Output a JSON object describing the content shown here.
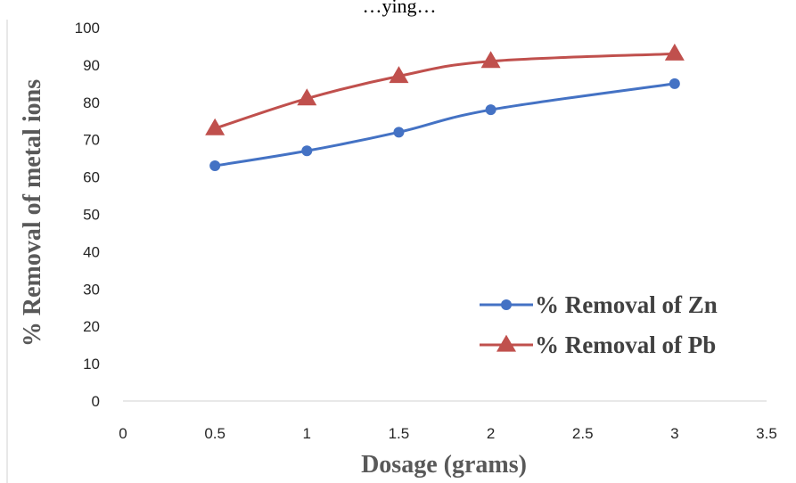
{
  "chart_data": {
    "type": "line",
    "title": "…ying…",
    "xlabel": "Dosage (grams)",
    "ylabel": "% Removal of metal ions",
    "xlim": [
      0,
      3.5
    ],
    "ylim": [
      0,
      100
    ],
    "x_ticks": [
      "0",
      "0.5",
      "1",
      "1.5",
      "2",
      "2.5",
      "3",
      "3.5"
    ],
    "y_ticks": [
      "0",
      "10",
      "20",
      "30",
      "40",
      "50",
      "60",
      "70",
      "80",
      "90",
      "100"
    ],
    "grid": false,
    "legend_position": "right",
    "x": [
      0.5,
      1,
      1.5,
      2,
      3
    ],
    "series": [
      {
        "name": "% Removal of Zn",
        "values": [
          63,
          67,
          72,
          78,
          85
        ],
        "color": "#4472C4",
        "marker": "circle"
      },
      {
        "name": "% Removal of Pb",
        "values": [
          73,
          81,
          87,
          91,
          93
        ],
        "color": "#C0504D",
        "marker": "triangle"
      }
    ]
  }
}
